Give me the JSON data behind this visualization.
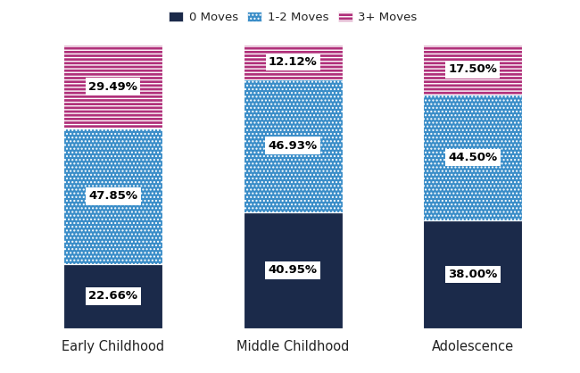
{
  "categories": [
    "Early Childhood",
    "Middle Childhood",
    "Adolescence"
  ],
  "series": {
    "0 Moves": [
      22.66,
      40.95,
      38.0
    ],
    "1-2 Moves": [
      47.85,
      46.93,
      44.5
    ],
    "3+ Moves": [
      29.49,
      12.12,
      17.5
    ]
  },
  "colors": {
    "0 Moves": "#1b2a4a",
    "1-2 Moves": "#3a8dc8",
    "3+ Moves": "#b0307a"
  },
  "legend_labels": [
    "0 Moves",
    "1-2 Moves",
    "3+ Moves"
  ],
  "hatches": {
    "0 Moves": "",
    "1-2 Moves": "....",
    "3+ Moves": "----"
  },
  "bar_width": 0.55,
  "ylim": [
    0,
    100
  ],
  "label_fontsize": 9.5,
  "legend_fontsize": 9.5,
  "tick_fontsize": 10.5,
  "background_color": "#ffffff"
}
